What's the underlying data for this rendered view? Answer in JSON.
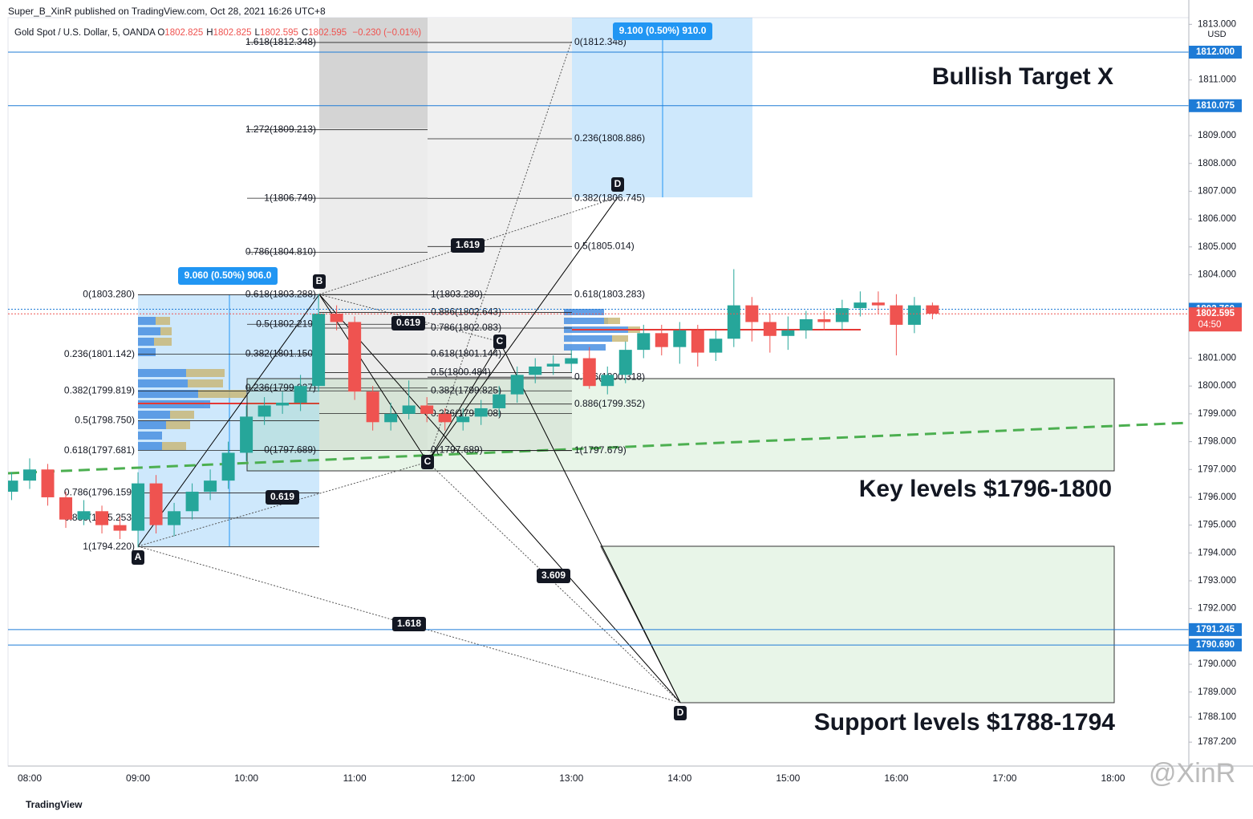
{
  "header": {
    "title": "Super_B_XinR published on TradingView.com, Oct 28, 2021 16:26 UTC+8"
  },
  "legend": {
    "symbol": "Gold Spot / U.S. Dollar, 5, OANDA",
    "ohlc": [
      {
        "key": "O",
        "value": 1802.825
      },
      {
        "key": "H",
        "value": 1802.825
      },
      {
        "key": "L",
        "value": 1802.595
      },
      {
        "key": "C",
        "value": 1802.595
      }
    ],
    "change": "−0.230 (−0.01%)"
  },
  "chart_data": {
    "type": "candlestick",
    "x": [
      "07:50",
      "08:00",
      "08:10",
      "08:20",
      "08:30",
      "08:40",
      "08:50",
      "09:00",
      "09:10",
      "09:20",
      "09:30",
      "09:40",
      "09:50",
      "10:00",
      "10:10",
      "10:20",
      "10:30",
      "10:40",
      "10:50",
      "11:00",
      "11:10",
      "11:20",
      "11:30",
      "11:40",
      "11:50",
      "12:00",
      "12:10",
      "12:20",
      "12:30",
      "12:40",
      "12:50",
      "13:00",
      "13:10",
      "13:20",
      "13:30",
      "13:40",
      "13:50",
      "14:00",
      "14:10",
      "14:20",
      "14:30",
      "14:40",
      "14:50",
      "15:00",
      "15:10",
      "15:20",
      "15:30",
      "15:40",
      "15:50",
      "16:00",
      "16:10",
      "16:20"
    ],
    "open": [
      1796.2,
      1796.6,
      1797.0,
      1796.0,
      1795.2,
      1795.5,
      1795.0,
      1794.8,
      1796.5,
      1795.0,
      1795.5,
      1796.2,
      1796.6,
      1797.6,
      1798.9,
      1799.3,
      1799.4,
      1800.0,
      1802.6,
      1802.3,
      1799.8,
      1798.7,
      1799.0,
      1799.3,
      1799.0,
      1798.7,
      1798.9,
      1799.2,
      1799.7,
      1800.4,
      1800.7,
      1800.8,
      1801.0,
      1800.0,
      1800.4,
      1801.3,
      1801.9,
      1801.4,
      1802.0,
      1801.2,
      1801.7,
      1802.9,
      1802.3,
      1801.8,
      1802.0,
      1802.4,
      1802.3,
      1802.8,
      1803.0,
      1802.9,
      1802.2,
      1802.9
    ],
    "high": [
      1796.9,
      1797.4,
      1797.2,
      1796.2,
      1795.9,
      1795.7,
      1795.3,
      1796.9,
      1796.8,
      1795.8,
      1796.5,
      1797.0,
      1798.0,
      1799.3,
      1799.6,
      1799.8,
      1800.4,
      1803.3,
      1802.9,
      1802.5,
      1800.0,
      1799.4,
      1800.2,
      1799.6,
      1799.2,
      1799.2,
      1799.5,
      1800.0,
      1800.7,
      1801.0,
      1801.1,
      1801.3,
      1801.4,
      1800.7,
      1801.6,
      1802.2,
      1802.2,
      1802.3,
      1802.2,
      1802.0,
      1804.2,
      1803.2,
      1802.6,
      1802.5,
      1802.7,
      1802.7,
      1803.1,
      1803.4,
      1803.4,
      1803.3,
      1803.2,
      1803.0
    ],
    "low": [
      1795.9,
      1796.3,
      1795.7,
      1794.9,
      1795.0,
      1794.7,
      1794.5,
      1794.2,
      1794.7,
      1794.6,
      1795.2,
      1795.9,
      1796.3,
      1797.3,
      1798.6,
      1799.0,
      1799.1,
      1799.8,
      1802.0,
      1799.5,
      1798.4,
      1798.4,
      1798.8,
      1798.7,
      1798.4,
      1798.4,
      1798.6,
      1798.9,
      1799.4,
      1800.1,
      1800.4,
      1800.5,
      1799.9,
      1799.7,
      1800.1,
      1801.0,
      1801.1,
      1800.8,
      1800.7,
      1800.9,
      1801.4,
      1801.6,
      1801.2,
      1801.3,
      1801.7,
      1802.0,
      1802.0,
      1802.5,
      1802.6,
      1801.1,
      1801.9,
      1802.4
    ],
    "close": [
      1796.6,
      1797.0,
      1796.0,
      1795.2,
      1795.5,
      1795.0,
      1794.8,
      1796.5,
      1795.0,
      1795.5,
      1796.2,
      1796.6,
      1797.6,
      1798.9,
      1799.3,
      1799.4,
      1800.0,
      1802.6,
      1802.3,
      1799.8,
      1798.7,
      1799.0,
      1799.3,
      1799.0,
      1798.7,
      1798.9,
      1799.2,
      1799.7,
      1800.4,
      1800.7,
      1800.8,
      1801.0,
      1800.0,
      1800.4,
      1801.3,
      1801.9,
      1801.4,
      1802.0,
      1801.2,
      1801.7,
      1802.9,
      1802.3,
      1801.8,
      1802.0,
      1802.4,
      1802.3,
      1802.8,
      1803.0,
      1802.9,
      1802.2,
      1802.9,
      1802.6
    ],
    "up_color": "#26a69a",
    "down_color": "#ef5350",
    "xlim": [
      "07:48",
      "18:42"
    ],
    "xticks": [
      "08:00",
      "09:00",
      "10:00",
      "11:00",
      "12:00",
      "13:00",
      "14:00",
      "15:00",
      "16:00",
      "17:00",
      "18:00"
    ],
    "ylim": [
      1786.34,
      1813.24
    ],
    "yticks": [
      {
        "value": 1787.2,
        "label": "1787.200"
      },
      {
        "value": 1788.1,
        "label": "1788.100"
      },
      {
        "value": 1789,
        "label": "1789.000"
      },
      {
        "value": 1790,
        "label": "1790.000"
      },
      {
        "value": 1792,
        "label": "1792.000"
      },
      {
        "value": 1793,
        "label": "1793.000"
      },
      {
        "value": 1794,
        "label": "1794.000"
      },
      {
        "value": 1795,
        "label": "1795.000"
      },
      {
        "value": 1796,
        "label": "1796.000"
      },
      {
        "value": 1797,
        "label": "1797.000"
      },
      {
        "value": 1798,
        "label": "1798.000"
      },
      {
        "value": 1799,
        "label": "1799.000"
      },
      {
        "value": 1800,
        "label": "1800.000"
      },
      {
        "value": 1801,
        "label": "1801.000"
      },
      {
        "value": 1804,
        "label": "1804.000"
      },
      {
        "value": 1805,
        "label": "1805.000"
      },
      {
        "value": 1806,
        "label": "1806.000"
      },
      {
        "value": 1807,
        "label": "1807.000"
      },
      {
        "value": 1808,
        "label": "1808.000"
      },
      {
        "value": 1809,
        "label": "1809.000"
      },
      {
        "value": 1811,
        "label": "1811.000"
      },
      {
        "value": 1813,
        "label": "1813.000"
      }
    ],
    "currency": "USD",
    "level_color": "#1e7bd6",
    "levels": [
      {
        "value": 1812,
        "label": "1812.000"
      },
      {
        "value": 1810.075,
        "label": "1810.075"
      },
      {
        "value": 1802.76,
        "label": "1802.760"
      },
      {
        "value": 1791.245,
        "label": "1791.245"
      },
      {
        "value": 1790.69,
        "label": "1790.690"
      }
    ],
    "last_price": {
      "value": 1802.595,
      "label": "1802.595",
      "countdown": "04:50"
    },
    "fibs": [
      [
        {
          "value": 1803.28,
          "label": "0(1803.280)"
        },
        {
          "value": 1801.142,
          "label": "0.236(1801.142)"
        },
        {
          "value": 1799.819,
          "label": "0.382(1799.819)"
        },
        {
          "value": 1798.75,
          "label": "0.5(1798.750)"
        },
        {
          "value": 1797.681,
          "label": "0.618(1797.681)"
        },
        {
          "value": 1796.159,
          "label": "0.786(1796.159)"
        },
        {
          "value": 1795.253,
          "label": "0.886(1795.253)"
        },
        {
          "value": 1794.22,
          "label": "1(1794.220)"
        }
      ],
      [
        {
          "value": 1812.348,
          "label": "1.618(1812.348)"
        },
        {
          "value": 1809.213,
          "label": "1.272(1809.213)"
        },
        {
          "value": 1806.749,
          "label": "1(1806.749)"
        },
        {
          "value": 1804.81,
          "label": "0.786(1804.810)"
        },
        {
          "value": 1803.288,
          "label": "0.618(1803.288)"
        },
        {
          "value": 1802.219,
          "label": "0.5(1802.219)"
        },
        {
          "value": 1801.15,
          "label": "0.382(1801.150)"
        },
        {
          "value": 1799.927,
          "label": "0.236(1799.927)"
        },
        {
          "value": 1797.689,
          "label": "0(1797.689)"
        }
      ],
      [
        {
          "value": 1803.28,
          "label": "1(1803.280)"
        },
        {
          "value": 1802.643,
          "label": "0.886(1802.643)"
        },
        {
          "value": 1802.083,
          "label": "0.786(1802.083)"
        },
        {
          "value": 1801.144,
          "label": "0.618(1801.144)"
        },
        {
          "value": 1800.484,
          "label": "0.5(1800.484)"
        },
        {
          "value": 1799.825,
          "label": "0.382(1799.825)"
        },
        {
          "value": 1799.008,
          "label": "0.236(1799.008)"
        },
        {
          "value": 1797.689,
          "label": "0(1797.689)"
        }
      ],
      [
        {
          "value": 1812.348,
          "label": "0(1812.348)"
        },
        {
          "value": 1808.886,
          "label": "0.236(1808.886)"
        },
        {
          "value": 1806.745,
          "label": "0.382(1806.745)"
        },
        {
          "value": 1805.014,
          "label": "0.5(1805.014)"
        },
        {
          "value": 1803.283,
          "label": "0.618(1803.283)"
        },
        {
          "value": 1800.318,
          "label": "0.786(1800.318)"
        },
        {
          "value": 1799.352,
          "label": "0.886(1799.352)"
        },
        {
          "value": 1797.679,
          "label": "1(1797.679)"
        }
      ]
    ],
    "ratios": [
      "1.619",
      "0.619",
      "0.619",
      "3.609",
      "1.618"
    ],
    "points": [
      "A",
      "B",
      "C",
      "C",
      "D",
      "D"
    ],
    "measures": [
      "9.060 (0.50%) 906.0",
      "9.100 (0.50%) 910.0"
    ],
    "annotations": [
      "Bullish Target X",
      "Key levels $1796-1800",
      "Support levels $1788-1794"
    ]
  },
  "watermark": "@XinR",
  "footer": "TradingView"
}
